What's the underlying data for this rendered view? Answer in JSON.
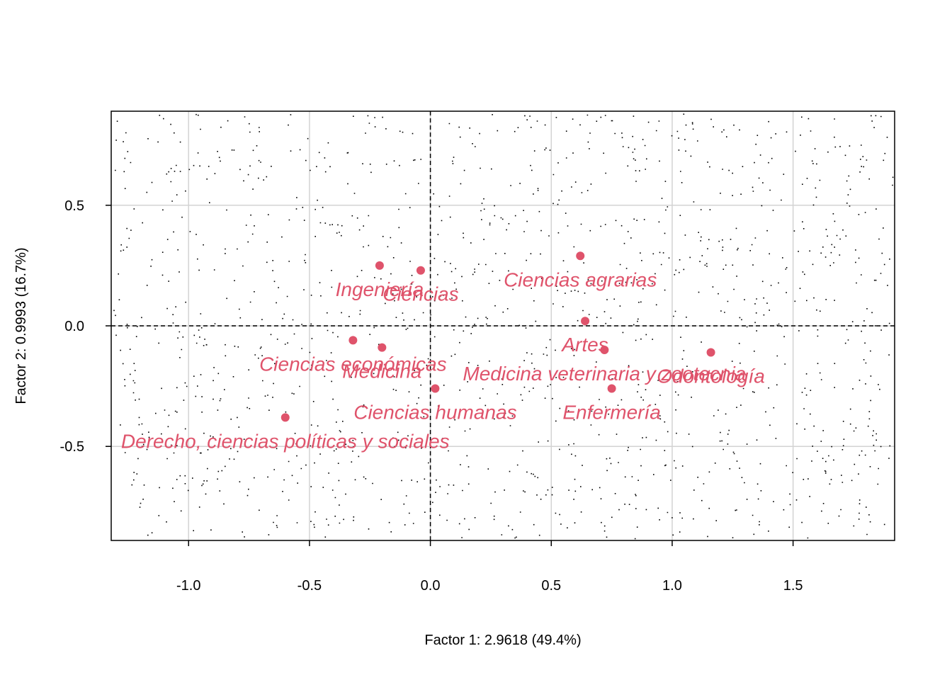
{
  "chart_data": {
    "type": "scatter",
    "title": "",
    "xlabel": "Factor 1: 2.9618 (49.4%)",
    "ylabel": "Factor 2: 0.9993 (16.7%)",
    "xlim": [
      -1.32,
      1.92
    ],
    "ylim": [
      -0.89,
      0.89
    ],
    "x_ticks": [
      {
        "value": -1.0,
        "label": "-1.0"
      },
      {
        "value": -0.5,
        "label": "-0.5"
      },
      {
        "value": 0.0,
        "label": "0.0"
      },
      {
        "value": 0.5,
        "label": "0.5"
      },
      {
        "value": 1.0,
        "label": "1.0"
      },
      {
        "value": 1.5,
        "label": "1.5"
      }
    ],
    "y_ticks": [
      {
        "value": -0.5,
        "label": "-0.5"
      },
      {
        "value": 0.0,
        "label": "0.0"
      },
      {
        "value": 0.5,
        "label": "0.5"
      }
    ],
    "grid": true,
    "reference_lines": {
      "x": 0,
      "y": 0,
      "style": "dashed"
    },
    "background_points": "many small black points (individuals) scattered across the plot area",
    "colors": {
      "points": "#df536b",
      "labels": "#df536b",
      "grid": "#d3d3d3",
      "axes": "#000000"
    },
    "points": [
      {
        "label": "Ingeniería",
        "x": -0.21,
        "y": 0.25
      },
      {
        "label": "Ciencias",
        "x": -0.04,
        "y": 0.23
      },
      {
        "label": "Ciencias agrarias",
        "x": 0.62,
        "y": 0.29
      },
      {
        "label": "Artes",
        "x": 0.64,
        "y": 0.02
      },
      {
        "label": "Ciencias económicas",
        "x": -0.32,
        "y": -0.06
      },
      {
        "label": "Medicina",
        "x": -0.2,
        "y": -0.09
      },
      {
        "label": "Medicina veterinaria y zootecnia",
        "x": 0.72,
        "y": -0.1
      },
      {
        "label": "Odontología",
        "x": 1.16,
        "y": -0.11
      },
      {
        "label": "Ciencias humanas",
        "x": 0.02,
        "y": -0.26
      },
      {
        "label": "Enfermería",
        "x": 0.75,
        "y": -0.26
      },
      {
        "label": "Derecho, ciencias políticas y sociales",
        "x": -0.6,
        "y": -0.38
      }
    ]
  }
}
